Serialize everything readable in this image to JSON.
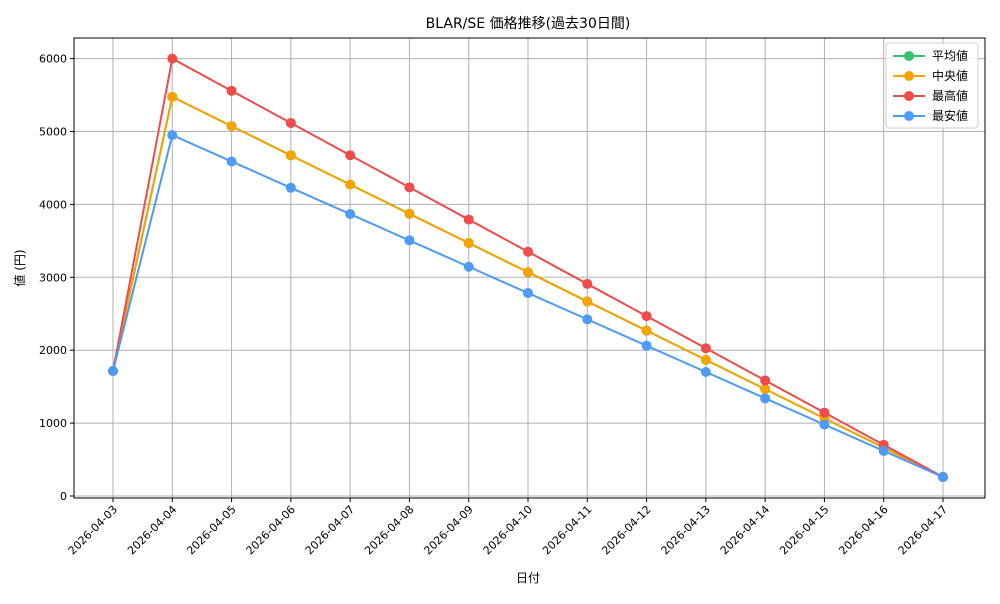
{
  "chart_data": {
    "type": "line",
    "title": "BLAR/SE 価格推移(過去30日間)",
    "xlabel": "日付",
    "ylabel": "値 (円)",
    "ylim": [
      0,
      6300
    ],
    "yticks": [
      0,
      1000,
      2000,
      3000,
      4000,
      5000,
      6000
    ],
    "grid": true,
    "legend_position": "upper right",
    "x": [
      "2026-04-03",
      "2026-04-04",
      "2026-04-05",
      "2026-04-06",
      "2026-04-07",
      "2026-04-08",
      "2026-04-09",
      "2026-04-10",
      "2026-04-11",
      "2026-04-12",
      "2026-04-13",
      "2026-04-14",
      "2026-04-15",
      "2026-04-16",
      "2026-04-17"
    ],
    "series": [
      {
        "name": "平均値",
        "color": "#33c46b",
        "values": [
          1715,
          5475,
          5074,
          4673,
          4272,
          3871,
          3470,
          3070,
          2669,
          2268,
          1867,
          1466,
          1065,
          664,
          260
        ]
      },
      {
        "name": "中央値",
        "color": "#f5a300",
        "values": [
          1715,
          5475,
          5074,
          4673,
          4272,
          3871,
          3470,
          3070,
          2669,
          2268,
          1867,
          1466,
          1065,
          664,
          260
        ]
      },
      {
        "name": "最高値",
        "color": "#f04b4b",
        "values": [
          1715,
          6000,
          5558,
          5117,
          4675,
          4234,
          3792,
          3351,
          2909,
          2468,
          2026,
          1585,
          1143,
          702,
          260
        ]
      },
      {
        "name": "最安値",
        "color": "#4d9bf5",
        "values": [
          1715,
          4950,
          4589,
          4228,
          3867,
          3506,
          3145,
          2784,
          2423,
          2062,
          1701,
          1340,
          979,
          618,
          260
        ]
      }
    ]
  }
}
